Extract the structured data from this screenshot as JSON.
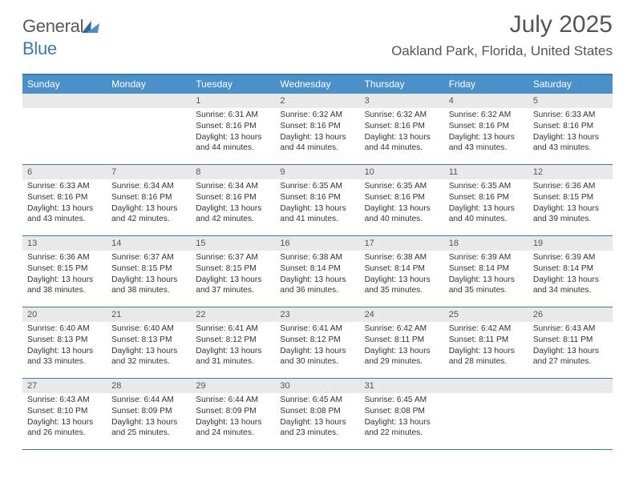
{
  "logo": {
    "word1": "General",
    "word2": "Blue"
  },
  "title": "July 2025",
  "location": "Oakland Park, Florida, United States",
  "day_headers": [
    "Sunday",
    "Monday",
    "Tuesday",
    "Wednesday",
    "Thursday",
    "Friday",
    "Saturday"
  ],
  "colors": {
    "header_bar": "#4a90c9",
    "rule": "#3a7db5",
    "date_bg": "#e9e9e9",
    "text": "#333333",
    "title_text": "#555555"
  },
  "weeks": [
    [
      null,
      null,
      {
        "d": "1",
        "sr": "6:31 AM",
        "ss": "8:16 PM",
        "dl": "13 hours and 44 minutes."
      },
      {
        "d": "2",
        "sr": "6:32 AM",
        "ss": "8:16 PM",
        "dl": "13 hours and 44 minutes."
      },
      {
        "d": "3",
        "sr": "6:32 AM",
        "ss": "8:16 PM",
        "dl": "13 hours and 44 minutes."
      },
      {
        "d": "4",
        "sr": "6:32 AM",
        "ss": "8:16 PM",
        "dl": "13 hours and 43 minutes."
      },
      {
        "d": "5",
        "sr": "6:33 AM",
        "ss": "8:16 PM",
        "dl": "13 hours and 43 minutes."
      }
    ],
    [
      {
        "d": "6",
        "sr": "6:33 AM",
        "ss": "8:16 PM",
        "dl": "13 hours and 43 minutes."
      },
      {
        "d": "7",
        "sr": "6:34 AM",
        "ss": "8:16 PM",
        "dl": "13 hours and 42 minutes."
      },
      {
        "d": "8",
        "sr": "6:34 AM",
        "ss": "8:16 PM",
        "dl": "13 hours and 42 minutes."
      },
      {
        "d": "9",
        "sr": "6:35 AM",
        "ss": "8:16 PM",
        "dl": "13 hours and 41 minutes."
      },
      {
        "d": "10",
        "sr": "6:35 AM",
        "ss": "8:16 PM",
        "dl": "13 hours and 40 minutes."
      },
      {
        "d": "11",
        "sr": "6:35 AM",
        "ss": "8:16 PM",
        "dl": "13 hours and 40 minutes."
      },
      {
        "d": "12",
        "sr": "6:36 AM",
        "ss": "8:15 PM",
        "dl": "13 hours and 39 minutes."
      }
    ],
    [
      {
        "d": "13",
        "sr": "6:36 AM",
        "ss": "8:15 PM",
        "dl": "13 hours and 38 minutes."
      },
      {
        "d": "14",
        "sr": "6:37 AM",
        "ss": "8:15 PM",
        "dl": "13 hours and 38 minutes."
      },
      {
        "d": "15",
        "sr": "6:37 AM",
        "ss": "8:15 PM",
        "dl": "13 hours and 37 minutes."
      },
      {
        "d": "16",
        "sr": "6:38 AM",
        "ss": "8:14 PM",
        "dl": "13 hours and 36 minutes."
      },
      {
        "d": "17",
        "sr": "6:38 AM",
        "ss": "8:14 PM",
        "dl": "13 hours and 35 minutes."
      },
      {
        "d": "18",
        "sr": "6:39 AM",
        "ss": "8:14 PM",
        "dl": "13 hours and 35 minutes."
      },
      {
        "d": "19",
        "sr": "6:39 AM",
        "ss": "8:14 PM",
        "dl": "13 hours and 34 minutes."
      }
    ],
    [
      {
        "d": "20",
        "sr": "6:40 AM",
        "ss": "8:13 PM",
        "dl": "13 hours and 33 minutes."
      },
      {
        "d": "21",
        "sr": "6:40 AM",
        "ss": "8:13 PM",
        "dl": "13 hours and 32 minutes."
      },
      {
        "d": "22",
        "sr": "6:41 AM",
        "ss": "8:12 PM",
        "dl": "13 hours and 31 minutes."
      },
      {
        "d": "23",
        "sr": "6:41 AM",
        "ss": "8:12 PM",
        "dl": "13 hours and 30 minutes."
      },
      {
        "d": "24",
        "sr": "6:42 AM",
        "ss": "8:11 PM",
        "dl": "13 hours and 29 minutes."
      },
      {
        "d": "25",
        "sr": "6:42 AM",
        "ss": "8:11 PM",
        "dl": "13 hours and 28 minutes."
      },
      {
        "d": "26",
        "sr": "6:43 AM",
        "ss": "8:11 PM",
        "dl": "13 hours and 27 minutes."
      }
    ],
    [
      {
        "d": "27",
        "sr": "6:43 AM",
        "ss": "8:10 PM",
        "dl": "13 hours and 26 minutes."
      },
      {
        "d": "28",
        "sr": "6:44 AM",
        "ss": "8:09 PM",
        "dl": "13 hours and 25 minutes."
      },
      {
        "d": "29",
        "sr": "6:44 AM",
        "ss": "8:09 PM",
        "dl": "13 hours and 24 minutes."
      },
      {
        "d": "30",
        "sr": "6:45 AM",
        "ss": "8:08 PM",
        "dl": "13 hours and 23 minutes."
      },
      {
        "d": "31",
        "sr": "6:45 AM",
        "ss": "8:08 PM",
        "dl": "13 hours and 22 minutes."
      },
      null,
      null
    ]
  ],
  "labels": {
    "sunrise": "Sunrise:",
    "sunset": "Sunset:",
    "daylight": "Daylight:"
  }
}
